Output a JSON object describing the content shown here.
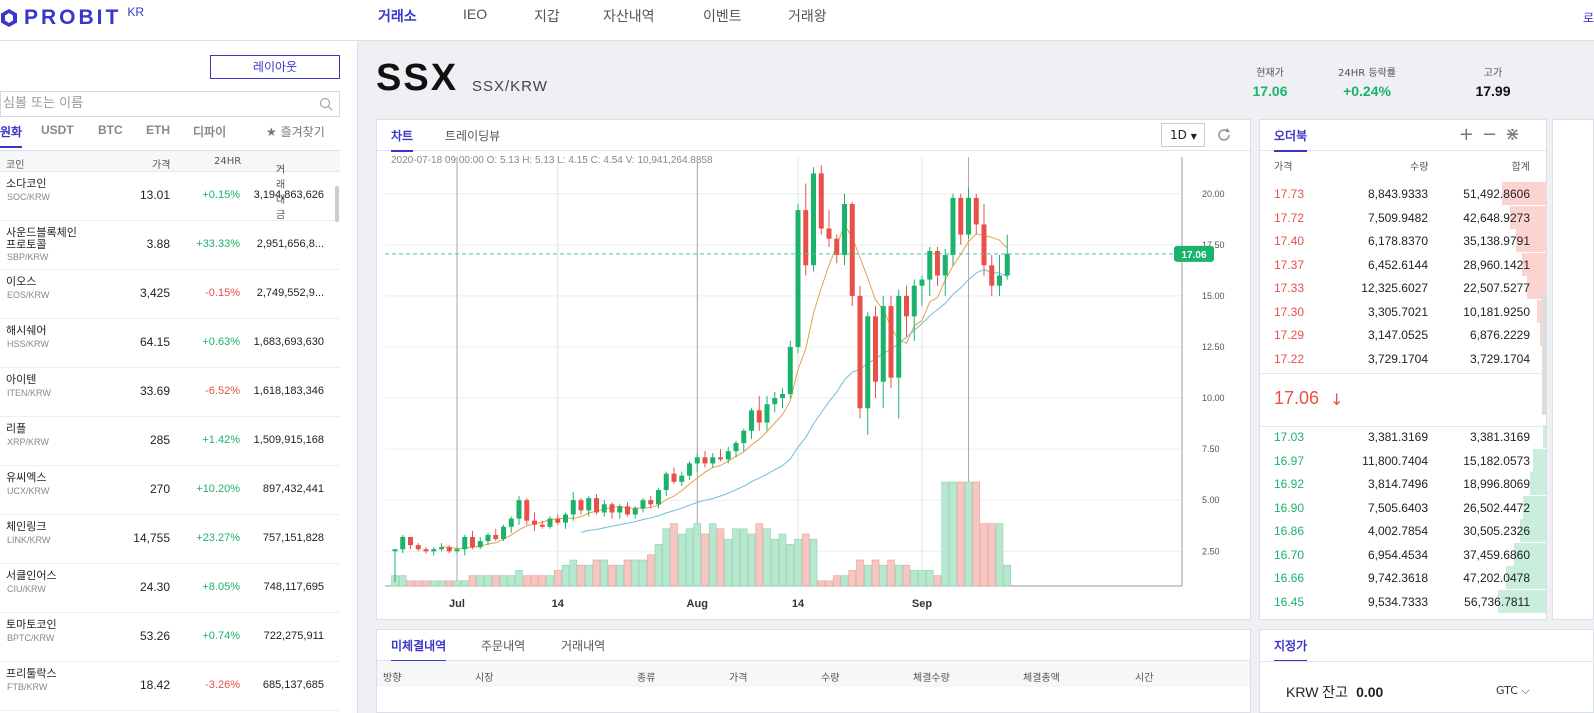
{
  "brand": {
    "name": "PROBIT",
    "region": "KR",
    "color": "#3a36c8"
  },
  "nav": {
    "items": [
      "거래소",
      "IEO",
      "지갑",
      "자산내역",
      "이벤트",
      "거래왕"
    ],
    "active_index": 0,
    "corner": "로"
  },
  "left": {
    "layout_button": "레이아웃",
    "search_placeholder": "심볼 또는 이름",
    "market_tabs": [
      "원화",
      "USDT",
      "BTC",
      "ETH",
      "디파이"
    ],
    "favorites": "즐겨찾기",
    "columns": [
      "코인",
      "가격",
      "24HR",
      "거래대금"
    ],
    "coins": [
      {
        "name": "소다코인",
        "symbol": "SOC/KRW",
        "price": "13.01",
        "change": "+0.15%",
        "volume": "3,194,863,626"
      },
      {
        "name": "사운드블록체인\n프로토콜",
        "symbol": "SBP/KRW",
        "price": "3.88",
        "change": "+33.33%",
        "volume": "2,951,656,8..."
      },
      {
        "name": "이오스",
        "symbol": "EOS/KRW",
        "price": "3,425",
        "change": "-0.15%",
        "volume": "2,749,552,9..."
      },
      {
        "name": "해시쉐어",
        "symbol": "HSS/KRW",
        "price": "64.15",
        "change": "+0.63%",
        "volume": "1,683,693,630"
      },
      {
        "name": "아이텐",
        "symbol": "ITEN/KRW",
        "price": "33.69",
        "change": "-6.52%",
        "volume": "1,618,183,346"
      },
      {
        "name": "리플",
        "symbol": "XRP/KRW",
        "price": "285",
        "change": "+1.42%",
        "volume": "1,509,915,168"
      },
      {
        "name": "유씨엑스",
        "symbol": "UCX/KRW",
        "price": "270",
        "change": "+10.20%",
        "volume": "897,432,441"
      },
      {
        "name": "체인링크",
        "symbol": "LINK/KRW",
        "price": "14,755",
        "change": "+23.27%",
        "volume": "757,151,828"
      },
      {
        "name": "서클인어스",
        "symbol": "CIU/KRW",
        "price": "24.30",
        "change": "+8.05%",
        "volume": "748,117,695"
      },
      {
        "name": "토마토코인",
        "symbol": "BPTC/KRW",
        "price": "53.26",
        "change": "+0.74%",
        "volume": "722,275,911"
      },
      {
        "name": "프리툴락스",
        "symbol": "FTB/KRW",
        "price": "18.42",
        "change": "-3.26%",
        "volume": "685,137,685"
      }
    ]
  },
  "header": {
    "symbol": "SSX",
    "pair": "SSX/KRW",
    "stats": [
      {
        "label": "현재가",
        "value": "17.06",
        "color": "#1bb26b"
      },
      {
        "label": "24HR 등락률",
        "value": "+0.24%",
        "color": "#1bb26b"
      },
      {
        "label": "고가",
        "value": "17.99",
        "color": "#111111"
      }
    ]
  },
  "chart_panel": {
    "tabs": [
      "차트",
      "트레이딩뷰"
    ],
    "timeframe": "1D",
    "ohlc_line": "2020-07-18 09:00:00   O: 5.13   H: 5.13   L: 4.15   C: 4.54   V: 10,941,264.8858",
    "price_tag": "17.06"
  },
  "chart_data": {
    "type": "candlestick",
    "x_ticks": [
      "Jul",
      "14",
      "Aug",
      "14",
      "Sep"
    ],
    "y_ticks": [
      "2.50",
      "5.00",
      "7.50",
      "10.00",
      "12.50",
      "15.00",
      "17.50",
      "20.00"
    ],
    "ylim": [
      0.8,
      21.8
    ],
    "current_price": 17.06,
    "up_color": "#1bb26b",
    "down_color": "#e9504a",
    "ma_fast_color": "#e5a04a",
    "ma_slow_color": "#6bc1d8",
    "candles": [
      [
        2.5,
        2.6,
        1.0,
        2.6,
        2
      ],
      [
        2.6,
        3.3,
        2.4,
        3.2,
        2
      ],
      [
        3.2,
        3.2,
        2.6,
        2.8,
        1
      ],
      [
        2.8,
        2.9,
        2.5,
        2.6,
        1
      ],
      [
        2.6,
        2.7,
        2.4,
        2.5,
        1
      ],
      [
        2.5,
        2.7,
        2.3,
        2.6,
        1
      ],
      [
        2.6,
        2.9,
        2.5,
        2.7,
        1
      ],
      [
        2.7,
        2.8,
        2.4,
        2.5,
        1
      ],
      [
        2.5,
        2.7,
        2.4,
        2.6,
        1
      ],
      [
        2.6,
        3.3,
        2.3,
        3.2,
        1
      ],
      [
        3.2,
        3.5,
        2.6,
        2.7,
        2
      ],
      [
        2.7,
        3.2,
        2.6,
        3.0,
        2
      ],
      [
        3.0,
        3.4,
        2.8,
        3.3,
        2
      ],
      [
        3.3,
        3.6,
        3.0,
        3.1,
        2
      ],
      [
        3.1,
        3.8,
        3.0,
        3.7,
        2
      ],
      [
        3.7,
        4.2,
        3.4,
        4.1,
        2
      ],
      [
        4.1,
        5.2,
        3.8,
        5.0,
        3
      ],
      [
        5.0,
        5.1,
        3.8,
        4.0,
        2
      ],
      [
        4.0,
        4.4,
        3.5,
        3.8,
        2
      ],
      [
        3.8,
        4.0,
        3.6,
        3.7,
        2
      ],
      [
        3.7,
        4.2,
        3.6,
        4.1,
        2
      ],
      [
        4.1,
        4.3,
        3.8,
        3.9,
        3
      ],
      [
        3.9,
        4.4,
        3.6,
        4.3,
        4
      ],
      [
        4.3,
        5.4,
        4.0,
        5.0,
        5
      ],
      [
        5.0,
        5.1,
        4.3,
        4.5,
        4
      ],
      [
        4.5,
        5.2,
        4.2,
        5.1,
        4
      ],
      [
        5.1,
        5.3,
        4.3,
        4.4,
        5
      ],
      [
        4.4,
        5.0,
        4.2,
        4.8,
        5
      ],
      [
        4.8,
        4.9,
        4.1,
        4.4,
        4
      ],
      [
        4.4,
        4.8,
        4.1,
        4.7,
        4
      ],
      [
        4.7,
        4.9,
        4.2,
        4.3,
        5
      ],
      [
        4.3,
        4.7,
        4.1,
        4.6,
        5
      ],
      [
        4.6,
        5.1,
        4.4,
        5.0,
        5
      ],
      [
        5.0,
        5.2,
        4.6,
        4.8,
        6
      ],
      [
        4.8,
        5.6,
        4.6,
        5.5,
        8
      ],
      [
        5.5,
        6.4,
        5.2,
        6.3,
        11
      ],
      [
        6.3,
        6.6,
        5.8,
        5.9,
        12
      ],
      [
        5.9,
        6.4,
        5.7,
        6.2,
        10
      ],
      [
        6.2,
        6.9,
        6.0,
        6.8,
        11
      ],
      [
        6.8,
        7.3,
        6.4,
        7.1,
        12
      ],
      [
        7.1,
        7.4,
        6.6,
        6.8,
        10
      ],
      [
        6.8,
        7.3,
        6.6,
        7.1,
        12
      ],
      [
        7.1,
        7.5,
        6.9,
        7.0,
        11
      ],
      [
        7.0,
        7.6,
        6.8,
        7.4,
        9
      ],
      [
        7.4,
        7.9,
        7.1,
        7.8,
        11
      ],
      [
        7.8,
        8.5,
        7.4,
        8.4,
        11
      ],
      [
        8.4,
        9.5,
        8.0,
        9.4,
        10
      ],
      [
        9.4,
        10.1,
        8.4,
        8.8,
        12
      ],
      [
        8.8,
        10.1,
        8.4,
        9.7,
        11
      ],
      [
        9.7,
        10.3,
        9.3,
        10.0,
        9
      ],
      [
        10.0,
        10.5,
        9.5,
        10.2,
        10
      ],
      [
        10.2,
        12.8,
        10.0,
        12.5,
        8
      ],
      [
        12.5,
        19.5,
        12.2,
        19.2,
        9
      ],
      [
        19.2,
        20.5,
        16.0,
        16.5,
        10
      ],
      [
        16.5,
        21.3,
        16.2,
        21.0,
        9
      ],
      [
        21.0,
        21.4,
        18.0,
        18.3,
        1
      ],
      [
        18.3,
        19.2,
        17.4,
        17.8,
        1
      ],
      [
        17.8,
        18.0,
        16.6,
        17.0,
        2
      ],
      [
        17.0,
        20.0,
        16.5,
        19.5,
        2
      ],
      [
        19.5,
        19.6,
        14.5,
        15.0,
        3
      ],
      [
        15.0,
        15.5,
        9.0,
        9.5,
        5
      ],
      [
        9.5,
        14.2,
        8.2,
        14.0,
        4
      ],
      [
        14.0,
        14.5,
        10.0,
        10.8,
        5
      ],
      [
        10.8,
        15.0,
        9.5,
        14.5,
        4
      ],
      [
        14.5,
        15.0,
        10.5,
        11.0,
        5
      ],
      [
        11.0,
        15.3,
        9.0,
        15.0,
        4
      ],
      [
        15.0,
        15.5,
        13.0,
        14.0,
        4
      ],
      [
        14.0,
        15.8,
        12.8,
        15.5,
        3
      ],
      [
        15.5,
        16.0,
        14.5,
        15.8,
        3
      ],
      [
        15.8,
        17.4,
        15.0,
        17.2,
        3
      ],
      [
        17.2,
        17.4,
        15.5,
        16.0,
        2
      ],
      [
        16.0,
        17.3,
        15.0,
        17.0,
        20
      ],
      [
        17.0,
        20.0,
        16.5,
        19.8,
        20
      ],
      [
        19.8,
        20.0,
        17.5,
        18.0,
        20
      ],
      [
        18.0,
        20.3,
        17.8,
        19.8,
        20
      ],
      [
        19.8,
        20.0,
        18.0,
        18.5,
        20
      ],
      [
        18.5,
        19.5,
        16.0,
        16.5,
        12
      ],
      [
        16.5,
        17.0,
        15.0,
        15.5,
        12
      ],
      [
        15.5,
        17.0,
        15.0,
        16.0,
        12
      ],
      [
        16.0,
        18.0,
        15.8,
        17.06,
        4
      ]
    ]
  },
  "orderbook": {
    "tab": "오더북",
    "columns": [
      "가격",
      "수량",
      "합계"
    ],
    "asks": [
      {
        "price": "17.73",
        "qty": "8,843.9333",
        "total": "51,492.8606",
        "depth": 0.91
      },
      {
        "price": "17.72",
        "qty": "7,509.9482",
        "total": "42,648.9273",
        "depth": 0.76
      },
      {
        "price": "17.40",
        "qty": "6,178.8370",
        "total": "35,138.9791",
        "depth": 0.62
      },
      {
        "price": "17.37",
        "qty": "6,452.6144",
        "total": "28,960.1421",
        "depth": 0.51
      },
      {
        "price": "17.33",
        "qty": "12,325.6027",
        "total": "22,507.5277",
        "depth": 0.4
      },
      {
        "price": "17.30",
        "qty": "3,305.7021",
        "total": "10,181.9250",
        "depth": 0.18
      },
      {
        "price": "17.29",
        "qty": "3,147.0525",
        "total": "6,876.2229",
        "depth": 0.12
      },
      {
        "price": "17.22",
        "qty": "3,729.1704",
        "total": "3,729.1704",
        "depth": 0.07
      }
    ],
    "current_price": "17.06",
    "current_arrow": "↓",
    "bids": [
      {
        "price": "17.03",
        "qty": "3,381.3169",
        "total": "3,381.3169",
        "depth": 0.06
      },
      {
        "price": "16.97",
        "qty": "11,800.7404",
        "total": "15,182.0573",
        "depth": 0.27
      },
      {
        "price": "16.92",
        "qty": "3,814.7496",
        "total": "18,996.8069",
        "depth": 0.33
      },
      {
        "price": "16.90",
        "qty": "7,505.6403",
        "total": "26,502.4472",
        "depth": 0.47
      },
      {
        "price": "16.86",
        "qty": "4,002.7854",
        "total": "30,505.2326",
        "depth": 0.54
      },
      {
        "price": "16.70",
        "qty": "6,954.4534",
        "total": "37,459.6860",
        "depth": 0.66
      },
      {
        "price": "16.66",
        "qty": "9,742.3618",
        "total": "47,202.0478",
        "depth": 0.83
      },
      {
        "price": "16.45",
        "qty": "9,534.7333",
        "total": "56,736.7811",
        "depth": 1.0
      }
    ]
  },
  "orders": {
    "tabs": [
      "미체결내역",
      "주문내역",
      "거래내역"
    ],
    "columns": [
      "방향",
      "시장",
      "종류",
      "가격",
      "수량",
      "체결수량",
      "체결총액",
      "시간"
    ]
  },
  "limit": {
    "tab": "지정가",
    "balance_label": "KRW 잔고",
    "balance_value": "0.00",
    "tif": "GTC"
  }
}
